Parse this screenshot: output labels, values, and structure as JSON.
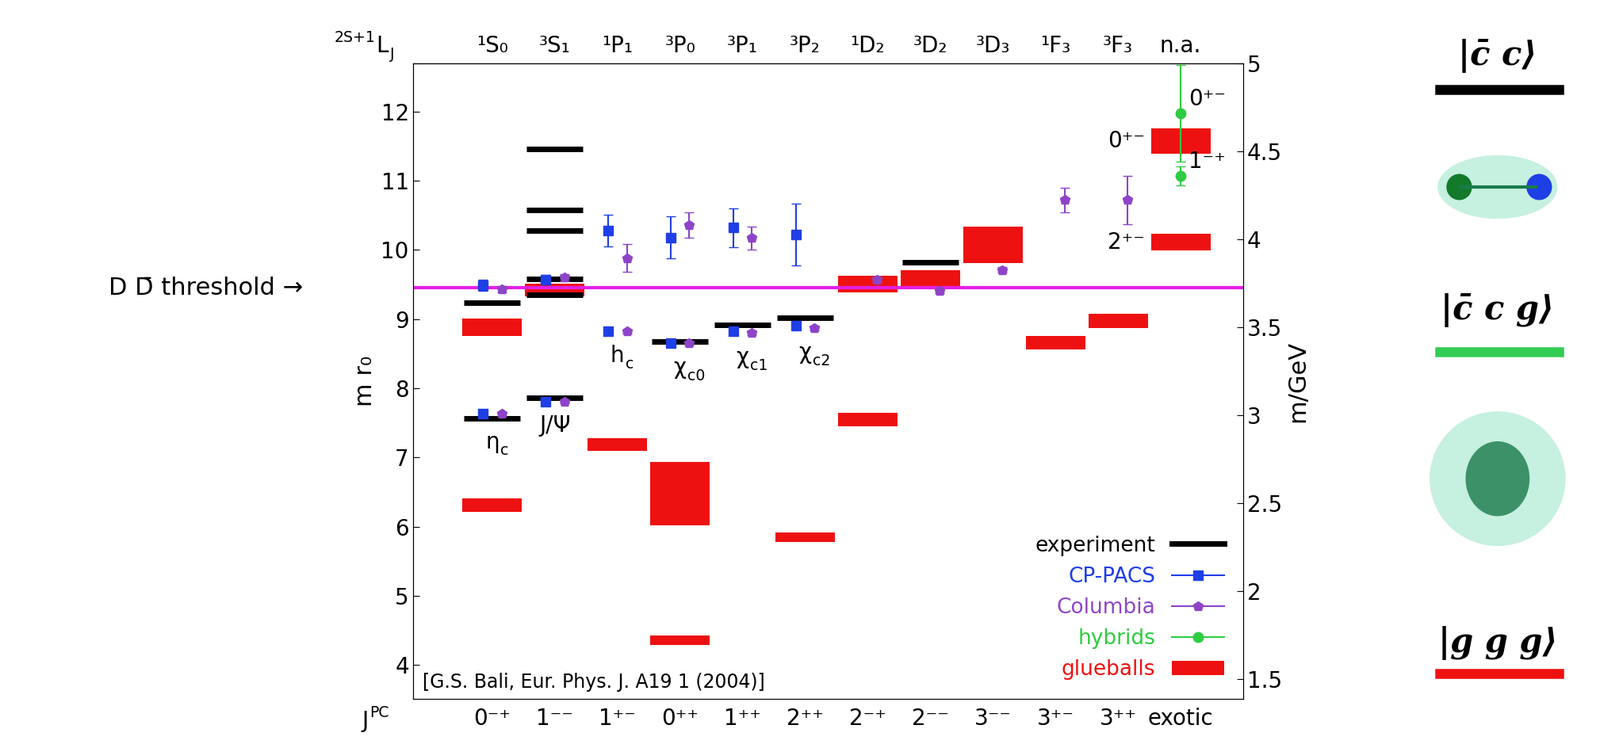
{
  "chart_data": {
    "type": "scatter",
    "categories": [
      "0⁻⁺",
      "1⁻⁻",
      "1⁺⁻",
      "0⁺⁺",
      "1⁺⁺",
      "2⁺⁺",
      "2⁻⁺",
      "2⁻⁻",
      "3⁻⁻",
      "3⁺⁻",
      "3⁺⁺",
      "exotic"
    ],
    "top_categories": [
      "¹S₀",
      "³S₁",
      "¹P₁",
      "³P₀",
      "³P₁",
      "³P₂",
      "¹D₂",
      "³D₂",
      "³D₃",
      "¹F₃",
      "³F₃",
      "n.a."
    ],
    "corner_top": {
      "pre_sup": "2S+1",
      "base": "L",
      "sub": "J"
    },
    "corner_bottom": {
      "base": "J",
      "sup": "PC"
    },
    "ylabel": "m r₀",
    "y2label": "m/GeV",
    "ylim": [
      3.51,
      12.69
    ],
    "yticks": [
      4,
      5,
      6,
      7,
      8,
      9,
      10,
      11,
      12
    ],
    "y2lim": [
      1.385,
      5.0
    ],
    "y2ticks": [
      1.5,
      2,
      2.5,
      3,
      3.5,
      4,
      4.5,
      5
    ],
    "legend": "lower right",
    "threshold": {
      "label": "D D̄ threshold →",
      "value": 9.45,
      "color": "#e41ee4",
      "line_style": "solid"
    },
    "source": "[G.S. Bali, Eur. Phys. J. A19 1 (2004)]",
    "series": [
      {
        "name": "experiment",
        "type": "hline",
        "color": "#000000",
        "x": [
          "0⁻⁺",
          "0⁻⁺",
          "1⁻⁻",
          "1⁻⁻",
          "1⁻⁻",
          "1⁻⁻",
          "1⁻⁻",
          "1⁻⁻",
          "0⁺⁺",
          "1⁺⁺",
          "2⁺⁺",
          "2⁻⁻"
        ],
        "values": [
          7.57,
          9.23,
          7.86,
          9.35,
          9.58,
          10.28,
          10.57,
          11.46,
          8.67,
          8.91,
          9.02,
          9.82
        ]
      },
      {
        "name": "CP-PACS",
        "type": "errorbar",
        "color": "#1f3fe6",
        "marker": "square",
        "x": [
          "0⁻⁺",
          "0⁻⁺",
          "1⁻⁻",
          "1⁻⁻",
          "1⁺⁻",
          "1⁺⁻",
          "0⁺⁺",
          "0⁺⁺",
          "1⁺⁺",
          "1⁺⁺",
          "2⁺⁺",
          "2⁺⁺"
        ],
        "values": [
          7.63,
          9.49,
          7.81,
          9.57,
          8.82,
          10.28,
          8.65,
          10.18,
          8.82,
          10.32,
          8.9,
          10.22
        ],
        "errors": [
          0.03,
          0.08,
          0.03,
          0.07,
          0.03,
          0.23,
          0.03,
          0.3,
          0.03,
          0.28,
          0.03,
          0.45
        ]
      },
      {
        "name": "Columbia",
        "type": "errorbar",
        "color": "#8e44c8",
        "marker": "pentagon",
        "x": [
          "0⁻⁺",
          "0⁻⁺",
          "1⁻⁻",
          "1⁻⁻",
          "1⁺⁻",
          "1⁺⁻",
          "0⁺⁺",
          "0⁺⁺",
          "1⁺⁺",
          "1⁺⁺",
          "2⁺⁺",
          "2⁻⁺",
          "2⁻⁻",
          "3⁻⁻",
          "3⁺⁻",
          "3⁺⁺"
        ],
        "values": [
          7.63,
          9.43,
          7.81,
          9.6,
          8.82,
          9.88,
          8.65,
          10.36,
          8.8,
          10.17,
          8.87,
          9.57,
          9.41,
          9.71,
          10.72,
          10.72
        ],
        "errors": [
          0.03,
          0.05,
          0.03,
          0.05,
          0.03,
          0.2,
          0.03,
          0.18,
          0.03,
          0.17,
          0.03,
          0.04,
          0.04,
          0.04,
          0.18,
          0.35
        ]
      },
      {
        "name": "hybrids",
        "type": "errorbar",
        "color": "#2ecc40",
        "marker": "circle",
        "x": [
          "exotic",
          "exotic"
        ],
        "values": [
          11.97,
          11.07
        ],
        "errors": [
          0.7,
          0.14
        ],
        "point_labels": [
          "0⁺⁻",
          "1⁻⁺"
        ]
      },
      {
        "name": "glueballs",
        "type": "box",
        "color": "#ee1111",
        "x": [
          "0⁻⁺",
          "0⁻⁺",
          "1⁻⁻",
          "1⁺⁻",
          "0⁺⁺",
          "0⁺⁺",
          "2⁺⁺",
          "2⁻⁺",
          "2⁻⁺",
          "2⁻⁻",
          "3⁻⁻",
          "3⁺⁻",
          "3⁺⁺",
          "exotic",
          "exotic"
        ],
        "values": [
          8.88,
          6.31,
          9.42,
          7.19,
          6.48,
          4.36,
          5.85,
          7.55,
          9.5,
          9.59,
          10.07,
          8.66,
          8.97,
          11.57,
          10.11
        ],
        "errors": [
          0.13,
          0.1,
          0.09,
          0.09,
          0.46,
          0.07,
          0.07,
          0.1,
          0.12,
          0.11,
          0.26,
          0.1,
          0.1,
          0.18,
          0.12
        ],
        "point_labels": [
          null,
          null,
          null,
          null,
          null,
          null,
          null,
          null,
          null,
          null,
          null,
          null,
          null,
          "0⁺⁻",
          "2⁺⁻"
        ]
      }
    ],
    "state_names": [
      {
        "x": "0⁻⁺",
        "base": "η",
        "sub": "c"
      },
      {
        "x": "1⁻⁻",
        "base": "J/Ψ"
      },
      {
        "x": "1⁺⁻",
        "base": "h",
        "sub": "c"
      },
      {
        "x": "0⁺⁺",
        "base": "χ",
        "sub": "c0"
      },
      {
        "x": "1⁺⁺",
        "base": "χ",
        "sub": "c1"
      },
      {
        "x": "2⁺⁺",
        "base": "χ",
        "sub": "c2"
      }
    ],
    "states": [
      {
        "label": "|c̄ c⟩",
        "color": "#000000"
      },
      {
        "label": "|c̄ c g⟩",
        "color": "#33cc55"
      },
      {
        "label": "|g g g⟩",
        "color": "#ee1111"
      }
    ]
  }
}
